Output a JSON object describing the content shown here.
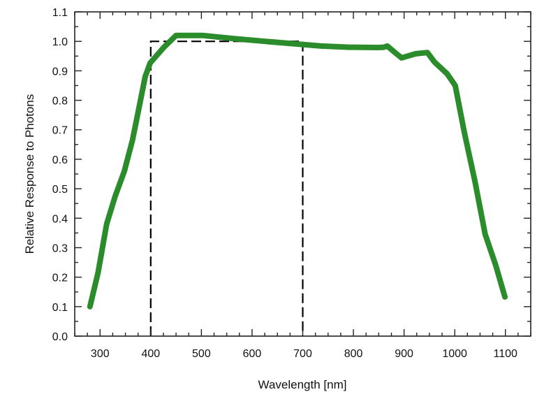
{
  "chart_data": {
    "type": "line",
    "title": "",
    "xlabel": "Wavelength [nm]",
    "ylabel": "Relative Response to Photons",
    "xlim": [
      250,
      1150
    ],
    "ylim": [
      0.0,
      1.1
    ],
    "xticks": [
      300,
      400,
      500,
      600,
      700,
      800,
      900,
      1000,
      1100
    ],
    "yticks": [
      "0.0",
      "0.1",
      "0.2",
      "0.3",
      "0.4",
      "0.5",
      "0.6",
      "0.7",
      "0.8",
      "0.9",
      "1.0",
      "1.1"
    ],
    "grid": false,
    "series": [
      {
        "color": "#2a8c2a",
        "x": [
          280,
          296,
          313,
          330,
          348,
          364,
          378,
          389,
          399,
          426,
          450,
          502,
          560,
          626,
          695,
          737,
          792,
          847,
          860,
          867,
          880,
          895,
          923,
          946,
          960,
          985,
          1001,
          1019,
          1040,
          1060,
          1081,
          1099
        ],
        "y": [
          0.1,
          0.215,
          0.38,
          0.475,
          0.56,
          0.665,
          0.785,
          0.88,
          0.927,
          0.98,
          1.02,
          1.02,
          1.01,
          1.0,
          0.99,
          0.984,
          0.98,
          0.979,
          0.98,
          0.984,
          0.965,
          0.944,
          0.958,
          0.962,
          0.93,
          0.89,
          0.85,
          0.69,
          0.524,
          0.346,
          0.24,
          0.133
        ]
      }
    ],
    "reference_band": {
      "style": "dashed",
      "color": "#000000",
      "x": [
        400,
        700
      ],
      "y": [
        0.0,
        1.0
      ]
    }
  }
}
